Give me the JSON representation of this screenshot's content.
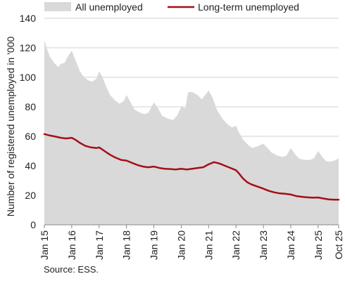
{
  "chart_data": {
    "type": "area",
    "title": "",
    "ylabel": "Number of registered unemployed in '000",
    "xlabel": "",
    "ylim": [
      0,
      140
    ],
    "yticks": [
      0,
      20,
      40,
      60,
      80,
      100,
      120,
      140
    ],
    "xlim": [
      2015.0,
      2025.75
    ],
    "x_tick_values": [
      2015,
      2016,
      2017,
      2018,
      2019,
      2020,
      2021,
      2022,
      2023,
      2024,
      2025,
      2025.75
    ],
    "x_tick_labels": [
      "Jan 15",
      "Jan 16",
      "Jan 17",
      "Jan 18",
      "Jan 19",
      "Jan 20",
      "Jan 21",
      "Jan 22",
      "Jan 23",
      "Jan 24",
      "Jan 25",
      "Oct 25"
    ],
    "grid": "horizontal",
    "legend": "top",
    "colors": {
      "all": "#d9d9d9",
      "long_term": "#a50f15",
      "grid": "#d0d0d0",
      "axis": "#888888"
    },
    "series": [
      {
        "name": "All unemployed",
        "kind": "area",
        "points": [
          [
            2015.0,
            125
          ],
          [
            2015.1,
            119
          ],
          [
            2015.2,
            114
          ],
          [
            2015.35,
            110
          ],
          [
            2015.5,
            107
          ],
          [
            2015.6,
            109
          ],
          [
            2015.75,
            110
          ],
          [
            2015.85,
            114
          ],
          [
            2016.0,
            118
          ],
          [
            2016.15,
            111
          ],
          [
            2016.3,
            104
          ],
          [
            2016.45,
            100
          ],
          [
            2016.6,
            98
          ],
          [
            2016.75,
            97
          ],
          [
            2016.9,
            99
          ],
          [
            2017.0,
            104
          ],
          [
            2017.1,
            101
          ],
          [
            2017.25,
            94
          ],
          [
            2017.4,
            88
          ],
          [
            2017.6,
            84
          ],
          [
            2017.75,
            82
          ],
          [
            2017.9,
            84
          ],
          [
            2018.0,
            88
          ],
          [
            2018.15,
            83
          ],
          [
            2018.3,
            78
          ],
          [
            2018.5,
            76
          ],
          [
            2018.65,
            75
          ],
          [
            2018.8,
            76
          ],
          [
            2019.0,
            83
          ],
          [
            2019.15,
            79
          ],
          [
            2019.3,
            74
          ],
          [
            2019.5,
            72
          ],
          [
            2019.7,
            71
          ],
          [
            2019.85,
            74
          ],
          [
            2020.0,
            80
          ],
          [
            2020.15,
            79
          ],
          [
            2020.25,
            90
          ],
          [
            2020.4,
            90
          ],
          [
            2020.6,
            88
          ],
          [
            2020.75,
            85
          ],
          [
            2021.0,
            91
          ],
          [
            2021.15,
            86
          ],
          [
            2021.3,
            78
          ],
          [
            2021.5,
            72
          ],
          [
            2021.7,
            68
          ],
          [
            2021.85,
            66
          ],
          [
            2022.0,
            67
          ],
          [
            2022.1,
            63
          ],
          [
            2022.25,
            58
          ],
          [
            2022.45,
            54
          ],
          [
            2022.6,
            52
          ],
          [
            2022.75,
            53
          ],
          [
            2023.0,
            55
          ],
          [
            2023.15,
            52
          ],
          [
            2023.3,
            49
          ],
          [
            2023.5,
            47
          ],
          [
            2023.7,
            46
          ],
          [
            2023.85,
            47
          ],
          [
            2024.0,
            52
          ],
          [
            2024.15,
            48
          ],
          [
            2024.3,
            45
          ],
          [
            2024.5,
            44
          ],
          [
            2024.7,
            44
          ],
          [
            2024.85,
            45
          ],
          [
            2025.0,
            50
          ],
          [
            2025.15,
            46
          ],
          [
            2025.3,
            43
          ],
          [
            2025.5,
            43
          ],
          [
            2025.65,
            44
          ],
          [
            2025.75,
            45
          ]
        ]
      },
      {
        "name": "Long-term unemployed",
        "kind": "line",
        "points": [
          [
            2015.0,
            61.5
          ],
          [
            2015.2,
            60.5
          ],
          [
            2015.4,
            59.8
          ],
          [
            2015.6,
            59.0
          ],
          [
            2015.8,
            58.5
          ],
          [
            2016.0,
            59.0
          ],
          [
            2016.15,
            57.5
          ],
          [
            2016.3,
            55.5
          ],
          [
            2016.5,
            53.5
          ],
          [
            2016.7,
            52.5
          ],
          [
            2016.9,
            52.0
          ],
          [
            2017.0,
            52.5
          ],
          [
            2017.2,
            50.0
          ],
          [
            2017.4,
            47.5
          ],
          [
            2017.6,
            45.5
          ],
          [
            2017.8,
            44.0
          ],
          [
            2018.0,
            43.5
          ],
          [
            2018.2,
            42.0
          ],
          [
            2018.4,
            40.5
          ],
          [
            2018.6,
            39.5
          ],
          [
            2018.8,
            39.0
          ],
          [
            2019.0,
            39.5
          ],
          [
            2019.2,
            38.5
          ],
          [
            2019.4,
            38.0
          ],
          [
            2019.6,
            37.8
          ],
          [
            2019.8,
            37.5
          ],
          [
            2020.0,
            38.0
          ],
          [
            2020.2,
            37.5
          ],
          [
            2020.4,
            38.0
          ],
          [
            2020.6,
            38.5
          ],
          [
            2020.8,
            39.0
          ],
          [
            2021.0,
            41.0
          ],
          [
            2021.2,
            42.5
          ],
          [
            2021.4,
            41.5
          ],
          [
            2021.6,
            40.0
          ],
          [
            2021.8,
            38.5
          ],
          [
            2022.0,
            37.0
          ],
          [
            2022.1,
            35.0
          ],
          [
            2022.25,
            31.5
          ],
          [
            2022.4,
            29.0
          ],
          [
            2022.55,
            27.5
          ],
          [
            2022.7,
            26.5
          ],
          [
            2022.85,
            25.5
          ],
          [
            2023.0,
            24.5
          ],
          [
            2023.2,
            23.0
          ],
          [
            2023.4,
            22.0
          ],
          [
            2023.6,
            21.3
          ],
          [
            2023.8,
            21.0
          ],
          [
            2024.0,
            20.5
          ],
          [
            2024.2,
            19.5
          ],
          [
            2024.4,
            19.0
          ],
          [
            2024.6,
            18.6
          ],
          [
            2024.8,
            18.4
          ],
          [
            2025.0,
            18.5
          ],
          [
            2025.2,
            17.8
          ],
          [
            2025.4,
            17.2
          ],
          [
            2025.6,
            17.0
          ],
          [
            2025.75,
            17.0
          ]
        ]
      }
    ]
  },
  "source": "Source: ESS."
}
